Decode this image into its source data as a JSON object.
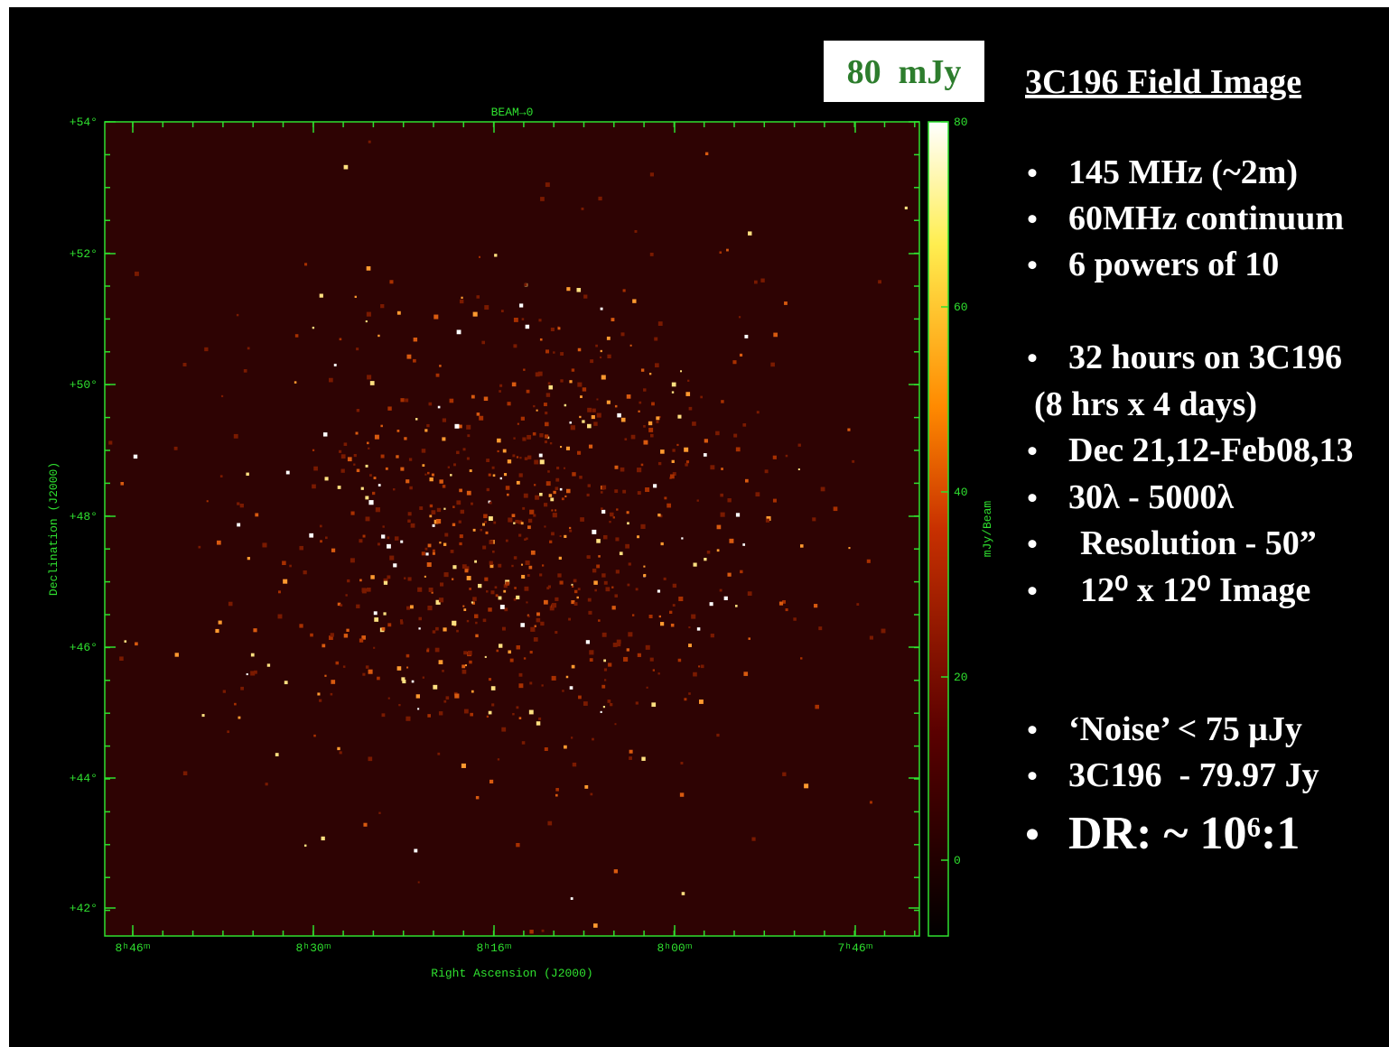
{
  "badge": "80  mJy",
  "title": "3C196 Field Image",
  "bullets": [
    "145 MHz (~2m)",
    "60MHz continuum",
    "6 powers of 10",
    "32 hours on 3C196",
    "(8 hrs x 4 days)",
    "Dec 21,12-Feb08,13",
    "30λ - 5000λ",
    "Resolution - 50”",
    "12⁰ x 12⁰ Image",
    "‘Noise’ < 75 μJy",
    "3C196  - 79.97 Jy",
    "DR: ~ 10⁶:1"
  ],
  "figure": {
    "top_label": "BEAM→0",
    "y_label": "Declination (J2000)",
    "x_label": "Right Ascension (J2000)",
    "dec_ticks": [
      "+54°",
      "+52°",
      "+50°",
      "+48°",
      "+46°",
      "+44°",
      "+42°"
    ],
    "ra_ticks": [
      "8ʰ46ᵐ",
      "8ʰ30ᵐ",
      "8ʰ16ᵐ",
      "8ʰ00ᵐ",
      "7ʰ46ᵐ"
    ],
    "colorbar_label": "mJy/Beam",
    "colorbar_ticks": [
      80,
      60,
      40,
      20,
      0
    ]
  }
}
